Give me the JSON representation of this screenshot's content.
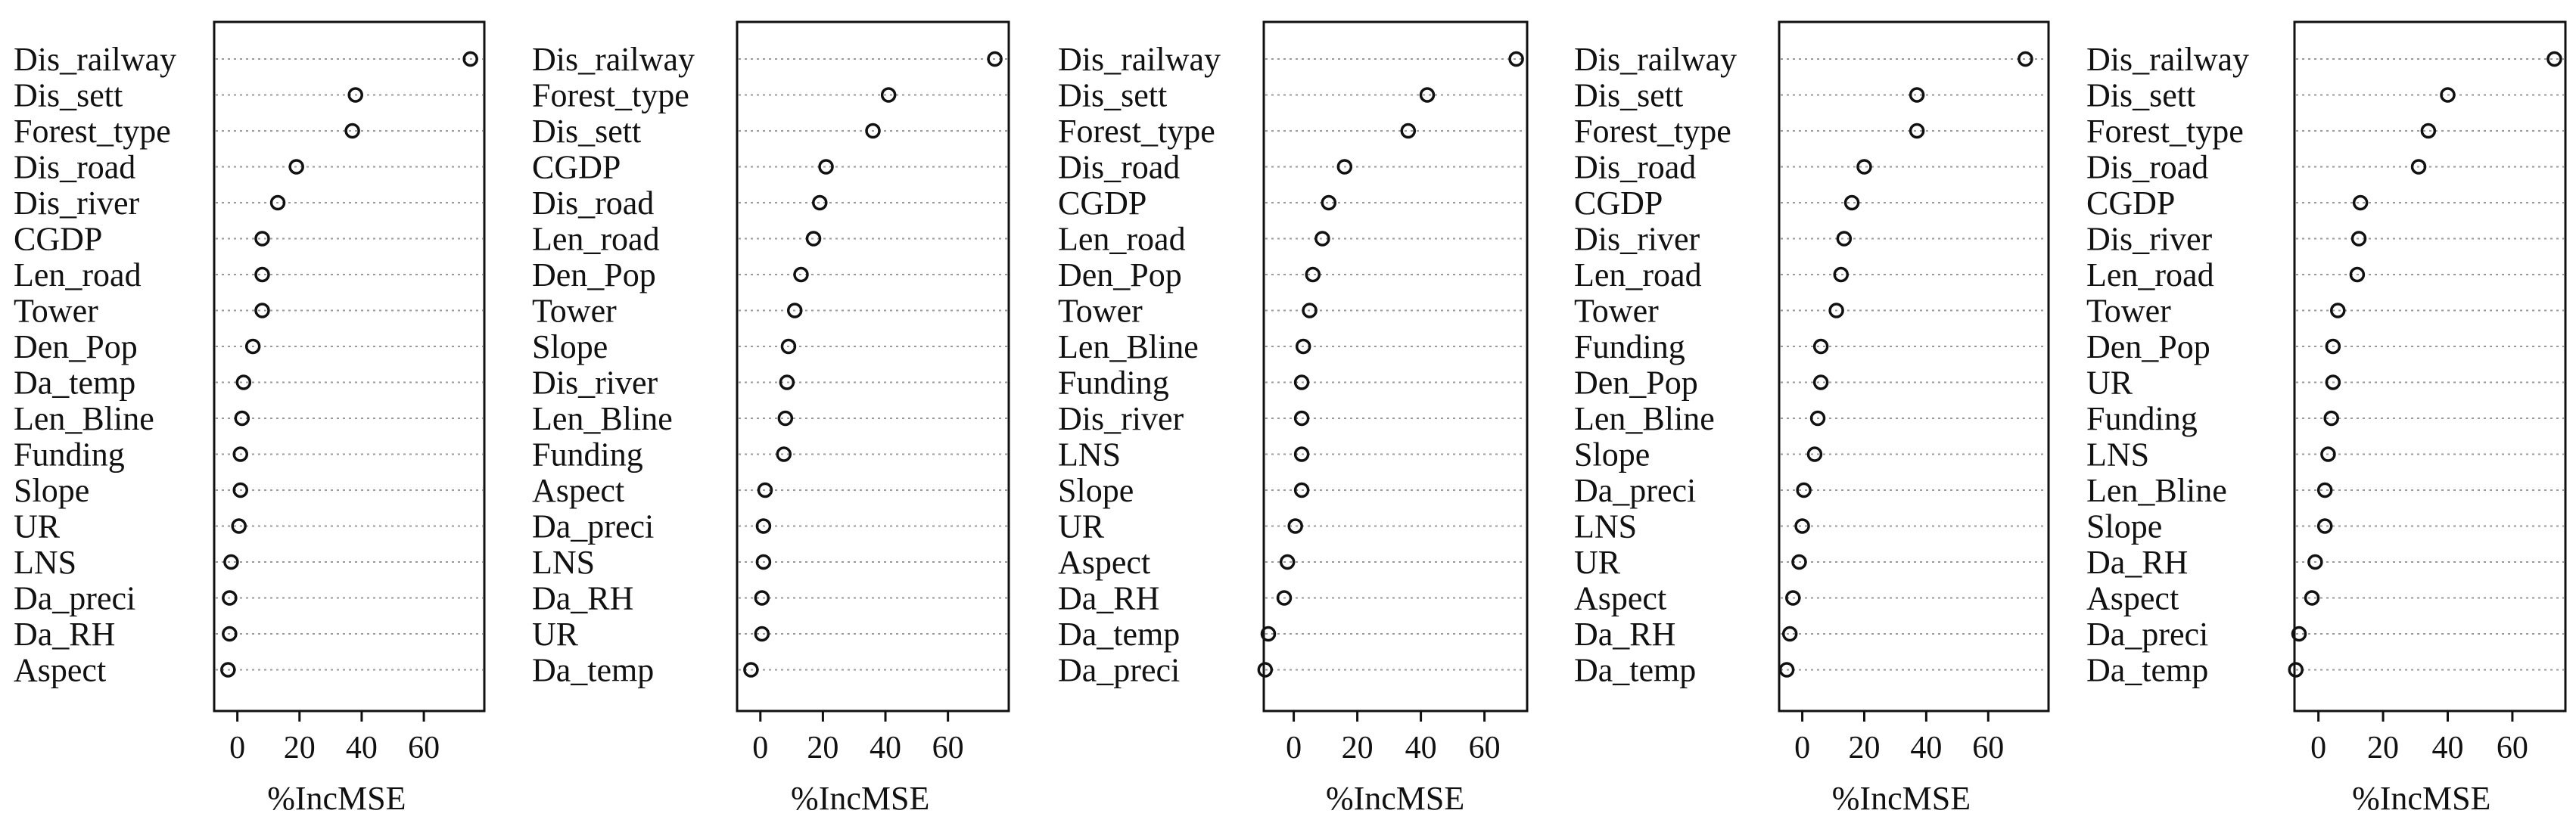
{
  "chart_data": [
    {
      "type": "dotchart",
      "xlabel": "%IncMSE",
      "xticks": [
        0,
        20,
        40,
        60
      ],
      "xlim": [
        -6,
        78
      ],
      "categories": [
        "Dis_railway",
        "Dis_sett",
        "Forest_type",
        "Dis_road",
        "Dis_river",
        "CGDP",
        "Len_road",
        "Tower",
        "Den_Pop",
        "Da_temp",
        "Len_Bline",
        "Funding",
        "Slope",
        "UR",
        "LNS",
        "Da_preci",
        "Da_RH",
        "Aspect"
      ],
      "values": [
        75,
        38,
        37,
        19,
        13,
        8,
        8,
        8,
        5,
        2,
        1.5,
        1,
        1,
        0.5,
        -2,
        -2.5,
        -2.5,
        -3
      ]
    },
    {
      "type": "dotchart",
      "xlabel": "%IncMSE",
      "xticks": [
        0,
        20,
        40,
        60
      ],
      "xlim": [
        -6,
        78
      ],
      "categories": [
        "Dis_railway",
        "Forest_type",
        "Dis_sett",
        "CGDP",
        "Dis_road",
        "Len_road",
        "Den_Pop",
        "Tower",
        "Slope",
        "Dis_river",
        "Len_Bline",
        "Funding",
        "Aspect",
        "Da_preci",
        "LNS",
        "Da_RH",
        "UR",
        "Da_temp"
      ],
      "values": [
        75,
        41,
        36,
        21,
        19,
        17,
        13,
        11,
        9,
        8.5,
        8,
        7.5,
        1.5,
        1,
        1,
        0.5,
        0.5,
        -3
      ]
    },
    {
      "type": "dotchart",
      "xlabel": "%IncMSE",
      "xticks": [
        0,
        20,
        40,
        60
      ],
      "xlim": [
        -8,
        72
      ],
      "categories": [
        "Dis_railway",
        "Dis_sett",
        "Forest_type",
        "Dis_road",
        "CGDP",
        "Len_road",
        "Den_Pop",
        "Tower",
        "Len_Bline",
        "Funding",
        "Dis_river",
        "LNS",
        "Slope",
        "UR",
        "Aspect",
        "Da_RH",
        "Da_temp",
        "Da_preci"
      ],
      "values": [
        70,
        42,
        36,
        16,
        11,
        9,
        6,
        5,
        3,
        2.5,
        2.5,
        2.5,
        2.5,
        0.5,
        -2,
        -3,
        -8,
        -9
      ]
    },
    {
      "type": "dotchart",
      "xlabel": "%IncMSE",
      "xticks": [
        0,
        20,
        40,
        60
      ],
      "xlim": [
        -6,
        78
      ],
      "categories": [
        "Dis_railway",
        "Dis_sett",
        "Forest_type",
        "Dis_road",
        "CGDP",
        "Dis_river",
        "Len_road",
        "Tower",
        "Funding",
        "Den_Pop",
        "Len_Bline",
        "Slope",
        "Da_preci",
        "LNS",
        "UR",
        "Aspect",
        "Da_RH",
        "Da_temp"
      ],
      "values": [
        72,
        37,
        37,
        20,
        16,
        13.5,
        12.5,
        11,
        6,
        6,
        5,
        4,
        0.5,
        0,
        -1,
        -3,
        -4,
        -5
      ]
    },
    {
      "type": "dotchart",
      "xlabel": "%IncMSE",
      "xticks": [
        0,
        20,
        40,
        60
      ],
      "xlim": [
        -6,
        75
      ],
      "categories": [
        "Dis_railway",
        "Dis_sett",
        "Forest_type",
        "Dis_road",
        "CGDP",
        "Dis_river",
        "Len_road",
        "Tower",
        "Den_Pop",
        "UR",
        "Funding",
        "LNS",
        "Len_Bline",
        "Slope",
        "Da_RH",
        "Aspect",
        "Da_preci",
        "Da_temp"
      ],
      "values": [
        73,
        40,
        34,
        31,
        13,
        12.5,
        12,
        6,
        4.5,
        4.5,
        4,
        3,
        2,
        2,
        -1,
        -2,
        -6,
        -7
      ]
    }
  ]
}
